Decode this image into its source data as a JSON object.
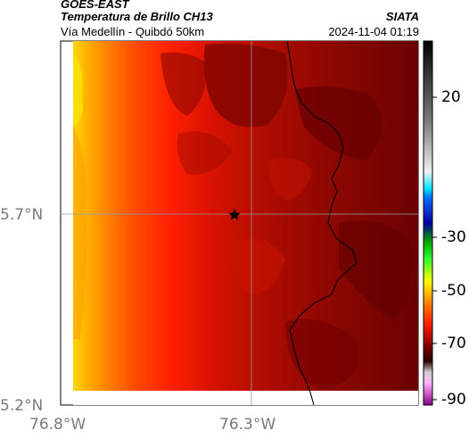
{
  "header": {
    "satellite": "GOES-EAST",
    "title": "Temperatura de Brillo CH13",
    "route": "Vía Medellín - Quibdó 50km",
    "organization": "SIATA",
    "timestamp": "2024-11-04 01:19"
  },
  "map": {
    "lat_ticks": [
      "5.7°N",
      "5.2°N"
    ],
    "lon_ticks": [
      "76.8°W",
      "76.3°W"
    ],
    "marker": "star-icon"
  },
  "colorbar": {
    "ticks": [
      "20",
      "-30",
      "-50",
      "-70",
      "-90"
    ]
  },
  "colors": {
    "warm_edge": "#ffcc00",
    "mid": "#ff2a00",
    "dark": "#8a0a00",
    "darkest": "#5a0000"
  }
}
